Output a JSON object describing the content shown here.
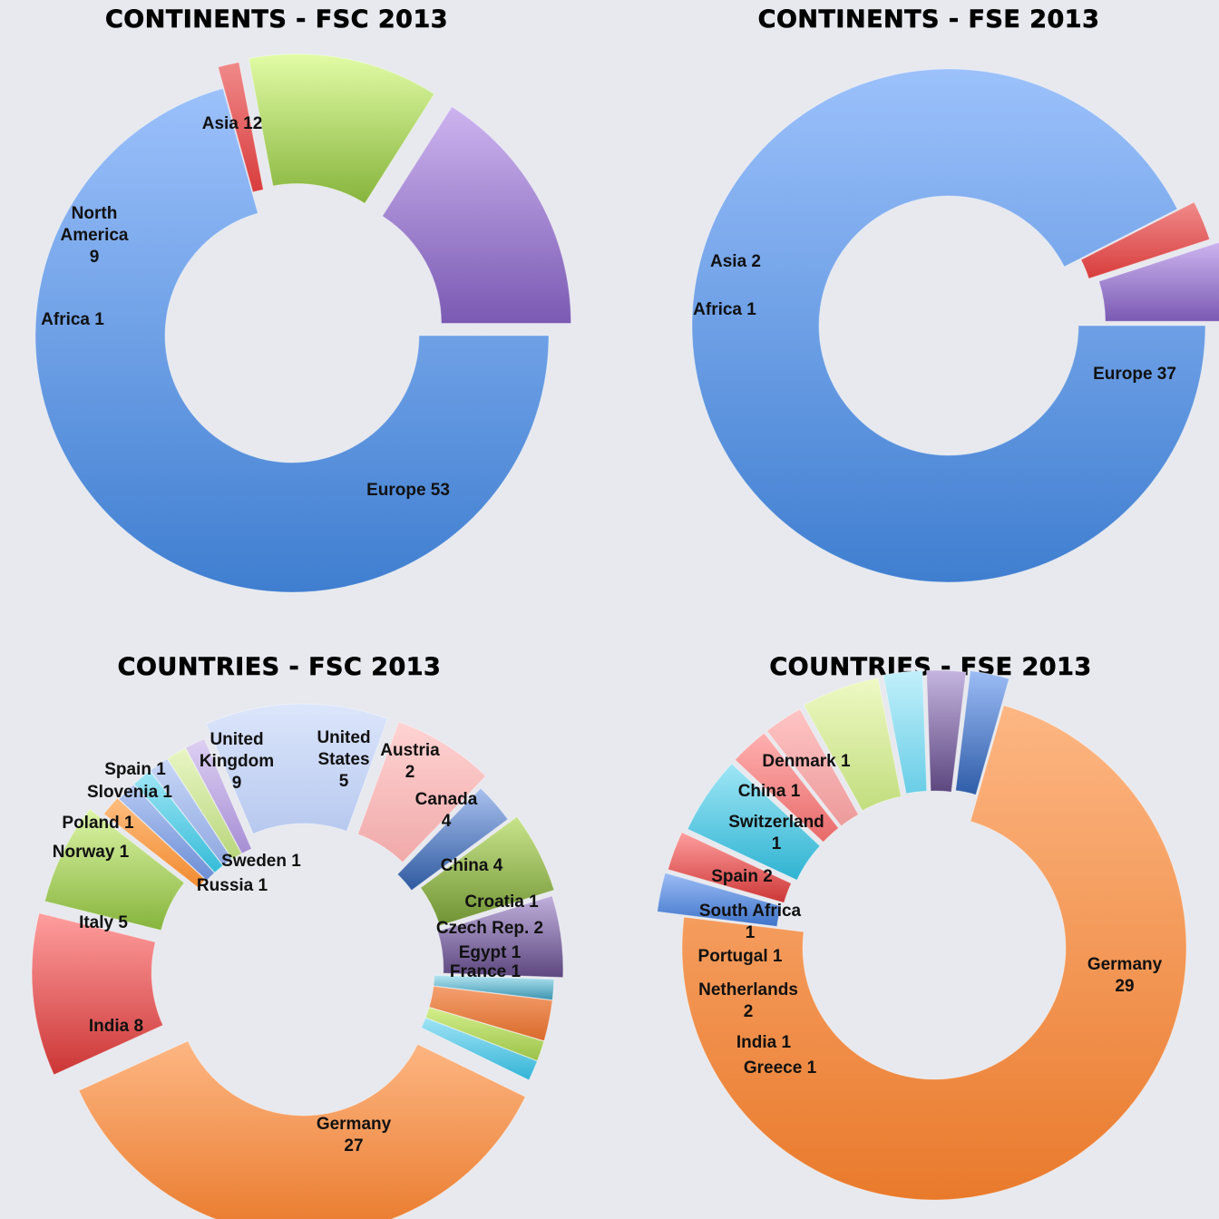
{
  "chart_data": [
    {
      "type": "pie",
      "title": "CONTINENTS - FSC 2013",
      "slices": [
        {
          "label": "Europe 53",
          "value": 53,
          "colors": [
            "#9cc1fb",
            "#3f7ed0"
          ]
        },
        {
          "label": "Africa 1",
          "value": 1,
          "colors": [
            "#f08a8a",
            "#d83c3c"
          ]
        },
        {
          "label": "North America 9",
          "value": 9,
          "colors": [
            "#e2fca6",
            "#86b43c"
          ]
        },
        {
          "label": "Asia 12",
          "value": 12,
          "colors": [
            "#cdb4ef",
            "#7a5ab3"
          ]
        }
      ]
    },
    {
      "type": "pie",
      "title": "CONTINENTS - FSE 2013",
      "slices": [
        {
          "label": "Europe 37",
          "value": 37,
          "colors": [
            "#9cc1fb",
            "#3f7ed0"
          ]
        },
        {
          "label": "Africa 1",
          "value": 1,
          "colors": [
            "#f08a8a",
            "#d83c3c"
          ]
        },
        {
          "label": "Asia 2",
          "value": 2,
          "colors": [
            "#cdb4ef",
            "#7a5ab3"
          ]
        }
      ]
    },
    {
      "type": "pie",
      "title": "COUNTRIES - FSC 2013",
      "slices": [
        {
          "label": "Germany 27",
          "value": 27,
          "colors": [
            "#fdb683",
            "#e97a2c"
          ]
        },
        {
          "label": "India 8",
          "value": 8,
          "colors": [
            "#ff9e9e",
            "#cc3636"
          ]
        },
        {
          "label": "Italy 5",
          "value": 5,
          "colors": [
            "#ddf5a8",
            "#86b43c"
          ]
        },
        {
          "label": "Norway 1",
          "value": 1,
          "colors": [
            "#ffbe80",
            "#f08a30"
          ]
        },
        {
          "label": "Russia 1",
          "value": 1,
          "colors": [
            "#b5c8f2",
            "#6d8fd6"
          ]
        },
        {
          "label": "Sweden 1",
          "value": 1,
          "colors": [
            "#9fe6f5",
            "#35bcd8"
          ]
        },
        {
          "label": "Poland 1",
          "value": 1,
          "colors": [
            "#c8d7f7",
            "#8fa8e0"
          ]
        },
        {
          "label": "Slovenia 1",
          "value": 1,
          "colors": [
            "#e8f6c4",
            "#b9d67c"
          ]
        },
        {
          "label": "Spain 1",
          "value": 1,
          "colors": [
            "#ddd0f2",
            "#a68ed4"
          ]
        },
        {
          "label": "United Kingdom 9",
          "value": 9,
          "colors": [
            "#dce6fb",
            "#b7c8ef"
          ]
        },
        {
          "label": "United States 5",
          "value": 5,
          "colors": [
            "#ffd3d3",
            "#f0a9a9"
          ]
        },
        {
          "label": "Austria 2",
          "value": 2,
          "colors": [
            "#a9c0ee",
            "#2f5aa0"
          ]
        },
        {
          "label": "Canada 4",
          "value": 4,
          "colors": [
            "#c9e48c",
            "#6f9233"
          ]
        },
        {
          "label": "China 4",
          "value": 4,
          "colors": [
            "#c0b0dc",
            "#5d477f"
          ]
        },
        {
          "label": "Croatia 1",
          "value": 1,
          "colors": [
            "#b3e6f2",
            "#3d94b0"
          ]
        },
        {
          "label": "Czech Rep. 2",
          "value": 2,
          "colors": [
            "#f5a070",
            "#d96a2a"
          ]
        },
        {
          "label": "Egypt 1",
          "value": 1,
          "colors": [
            "#d2ee8a",
            "#9cc24a"
          ]
        },
        {
          "label": "France 1",
          "value": 1,
          "colors": [
            "#9fe3f5",
            "#33b4d6"
          ]
        }
      ]
    },
    {
      "type": "pie",
      "title": "COUNTRIES - FSE 2013",
      "slices": [
        {
          "label": "Germany 29",
          "value": 29,
          "colors": [
            "#fdb683",
            "#e97a2c"
          ]
        },
        {
          "label": "Greece 1",
          "value": 1,
          "colors": [
            "#9cbcf5",
            "#3f74c9"
          ]
        },
        {
          "label": "India 1",
          "value": 1,
          "colors": [
            "#ff9e9e",
            "#cc3636"
          ]
        },
        {
          "label": "Netherlands 2",
          "value": 2,
          "colors": [
            "#9fe6f5",
            "#2fb3d2"
          ]
        },
        {
          "label": "Portugal 1",
          "value": 1,
          "colors": [
            "#ffb0b0",
            "#e86a6a"
          ]
        },
        {
          "label": "South Africa 1",
          "value": 1,
          "colors": [
            "#ffc4c4",
            "#ec9a9a"
          ]
        },
        {
          "label": "Spain 2",
          "value": 2,
          "colors": [
            "#eef9c4",
            "#c2dd7e"
          ]
        },
        {
          "label": "Switzerland 1",
          "value": 1,
          "colors": [
            "#c2f0fb",
            "#69cde6"
          ]
        },
        {
          "label": "China 1",
          "value": 1,
          "colors": [
            "#c4b4df",
            "#5d477f"
          ]
        },
        {
          "label": "Denmark 1",
          "value": 1,
          "colors": [
            "#9cbcf5",
            "#2f5da8"
          ]
        }
      ]
    }
  ]
}
